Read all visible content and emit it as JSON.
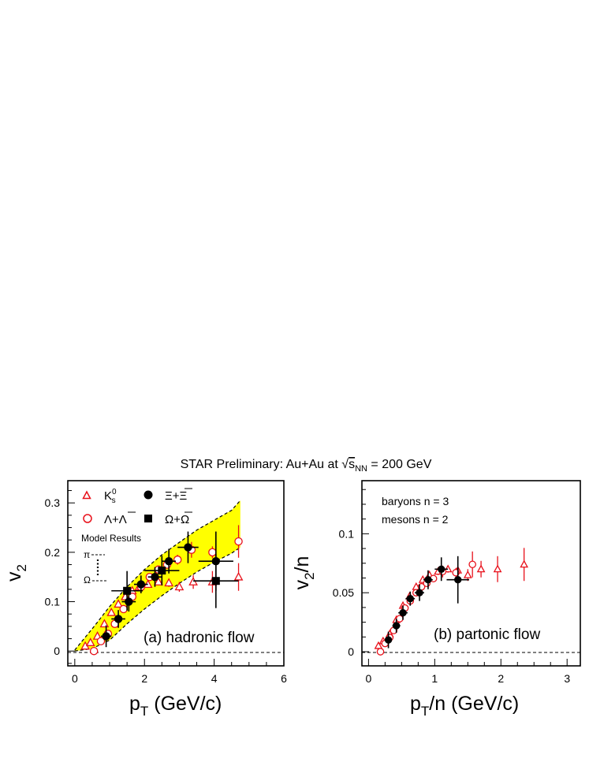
{
  "title": {
    "prefix": "STAR Preliminary: Au+Au at ",
    "sqrt": "√",
    "s": "s",
    "sub": "NN",
    "suffix": " = 200 GeV"
  },
  "colors": {
    "red": "#e8101a",
    "black": "#000000",
    "band_fill": "#ffff00"
  },
  "chart_data": [
    {
      "type": "scatter",
      "panel_label": "(a) hadronic flow",
      "xlabel_main": "p",
      "xlabel_sub": "T",
      "xlabel_unit": " (GeV/c)",
      "ylabel_main": "v",
      "ylabel_sub": "2",
      "xlim": [
        -0.2,
        6.0
      ],
      "ylim": [
        -0.03,
        0.345
      ],
      "xticks": [
        0,
        2,
        4,
        6
      ],
      "yticks": [
        0,
        0.1,
        0.2,
        0.3
      ],
      "ytick_labels": [
        "0",
        "0.1",
        "0.2",
        "0.3"
      ],
      "grid": false,
      "legend_placement": "top-left",
      "legend": {
        "k0s_main": "K",
        "k0s_sub": "s",
        "k0s_sup": "0",
        "lambda": "Λ+Λ",
        "xi": "Ξ+Ξ",
        "omega": "Ω+Ω",
        "model_title": "Model Results",
        "model_pi": "π",
        "model_omega": "Ω"
      },
      "model_band": {
        "x": [
          0.0,
          0.5,
          1.0,
          1.5,
          2.0,
          2.5,
          3.0,
          3.5,
          4.0,
          4.5,
          4.75
        ],
        "upper": [
          0.002,
          0.045,
          0.09,
          0.13,
          0.165,
          0.195,
          0.22,
          0.245,
          0.265,
          0.285,
          0.305
        ],
        "lower": [
          0.0,
          0.005,
          0.022,
          0.055,
          0.085,
          0.112,
          0.137,
          0.16,
          0.18,
          0.198,
          0.21
        ]
      },
      "series": [
        {
          "name": "K",
          "marker": "open-triangle",
          "color": "#e8101a",
          "x": [
            0.3,
            0.45,
            0.65,
            0.85,
            1.05,
            1.25,
            1.45,
            1.65,
            1.85,
            2.1,
            2.4,
            2.7,
            3.0,
            3.4,
            3.95,
            4.7
          ],
          "y": [
            0.01,
            0.017,
            0.03,
            0.055,
            0.078,
            0.095,
            0.11,
            0.122,
            0.13,
            0.135,
            0.14,
            0.138,
            0.13,
            0.14,
            0.14,
            0.15
          ],
          "ey": [
            0,
            0,
            0,
            0,
            0,
            0,
            0,
            0,
            0,
            0.005,
            0.006,
            0.008,
            0.01,
            0.014,
            0.022,
            0.028
          ]
        },
        {
          "name": "Λ+Λ",
          "marker": "open-circle",
          "color": "#e8101a",
          "x": [
            0.55,
            0.75,
            0.95,
            1.15,
            1.4,
            1.65,
            1.9,
            2.15,
            2.4,
            2.65,
            2.95,
            3.35,
            3.95,
            4.7
          ],
          "y": [
            0.0,
            0.02,
            0.035,
            0.055,
            0.085,
            0.11,
            0.13,
            0.15,
            0.165,
            0.175,
            0.185,
            0.205,
            0.2,
            0.222
          ],
          "ey": [
            0,
            0,
            0,
            0,
            0,
            0,
            0,
            0.006,
            0.006,
            0.008,
            0.01,
            0.016,
            0.012,
            0.033
          ]
        },
        {
          "name": "Ξ+Ξ",
          "marker": "filled-circle",
          "color": "#000000",
          "x": [
            0.9,
            1.25,
            1.55,
            1.9,
            2.3,
            2.7,
            3.25,
            4.05
          ],
          "y": [
            0.03,
            0.065,
            0.1,
            0.135,
            0.15,
            0.182,
            0.21,
            0.182
          ],
          "ex": [
            0.15,
            0.2,
            0.2,
            0.2,
            0.2,
            0.2,
            0.3,
            0.5
          ],
          "ey": [
            0.022,
            0.018,
            0.02,
            0.018,
            0.02,
            0.025,
            0.032,
            0.06
          ]
        },
        {
          "name": "Ω+Ω",
          "marker": "filled-square",
          "color": "#000000",
          "x": [
            1.5,
            2.5,
            4.05
          ],
          "y": [
            0.122,
            0.163,
            0.142
          ],
          "ex": [
            0.45,
            0.5,
            0.65
          ],
          "ey": [
            0.04,
            0.03,
            0.055
          ]
        }
      ]
    },
    {
      "type": "scatter",
      "panel_label": "(b) partonic flow",
      "xlabel_main": "p",
      "xlabel_sub": "T",
      "xlabel_unit": "/n (GeV/c)",
      "ylabel_main": "v",
      "ylabel_sub": "2",
      "ylabel_unit": "/n",
      "xlim": [
        -0.1,
        3.2
      ],
      "ylim": [
        -0.012,
        0.145
      ],
      "xticks": [
        0,
        1,
        2,
        3
      ],
      "yticks": [
        0,
        0.05,
        0.1
      ],
      "ytick_labels": [
        "0",
        "0.05",
        "0.1"
      ],
      "grid": false,
      "annotations": [
        "baryons n = 3",
        "mesons n = 2"
      ],
      "series": [
        {
          "name": "K",
          "marker": "open-triangle",
          "color": "#e8101a",
          "x": [
            0.15,
            0.22,
            0.32,
            0.42,
            0.52,
            0.62,
            0.72,
            0.82,
            0.92,
            1.05,
            1.2,
            1.35,
            1.5,
            1.7,
            1.95,
            2.35
          ],
          "y": [
            0.005,
            0.009,
            0.015,
            0.027,
            0.039,
            0.047,
            0.055,
            0.061,
            0.065,
            0.068,
            0.07,
            0.069,
            0.065,
            0.07,
            0.07,
            0.074
          ],
          "ey": [
            0,
            0,
            0,
            0,
            0,
            0,
            0,
            0,
            0,
            0.003,
            0.003,
            0.004,
            0.005,
            0.007,
            0.011,
            0.014
          ]
        },
        {
          "name": "Λ+Λ",
          "marker": "open-circle",
          "color": "#e8101a",
          "x": [
            0.18,
            0.25,
            0.32,
            0.38,
            0.47,
            0.55,
            0.63,
            0.72,
            0.8,
            0.88,
            0.98,
            1.12,
            1.32,
            1.57
          ],
          "y": [
            0.0,
            0.007,
            0.012,
            0.018,
            0.028,
            0.037,
            0.043,
            0.05,
            0.055,
            0.058,
            0.062,
            0.068,
            0.067,
            0.074
          ],
          "ey": [
            0,
            0,
            0,
            0,
            0,
            0,
            0,
            0,
            0,
            0.002,
            0.003,
            0.005,
            0.004,
            0.011
          ]
        },
        {
          "name": "Ξ+Ξ",
          "marker": "filled-circle",
          "color": "#000000",
          "x": [
            0.3,
            0.42,
            0.52,
            0.63,
            0.77,
            0.9,
            1.1,
            1.35
          ],
          "y": [
            0.01,
            0.022,
            0.033,
            0.045,
            0.05,
            0.061,
            0.07,
            0.061
          ],
          "ex": [
            0.05,
            0.06,
            0.07,
            0.07,
            0.07,
            0.07,
            0.1,
            0.17
          ],
          "ey": [
            0.007,
            0.006,
            0.006,
            0.006,
            0.007,
            0.008,
            0.01,
            0.02
          ]
        }
      ]
    }
  ]
}
